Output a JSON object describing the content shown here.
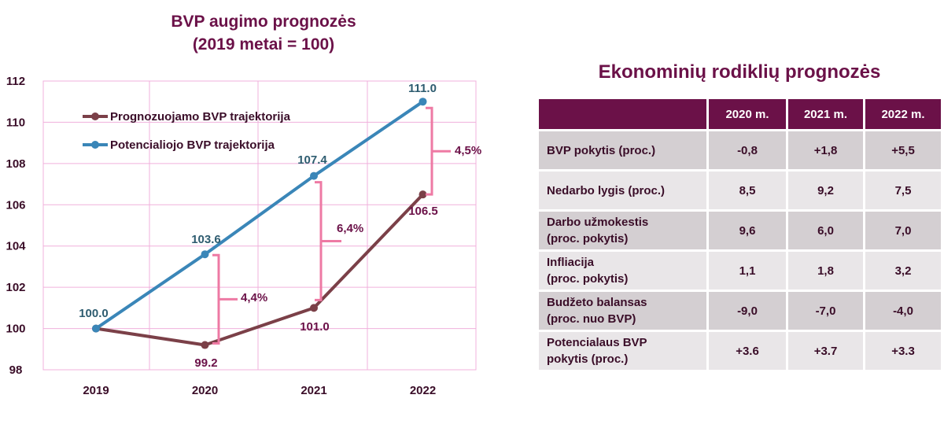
{
  "chart_data": {
    "type": "line",
    "title": "BVP augimo prognozės",
    "subtitle": "(2019 metai = 100)",
    "categories": [
      "2019",
      "2020",
      "2021",
      "2022"
    ],
    "ylim": [
      98,
      112
    ],
    "yticks": [
      "98",
      "100",
      "102",
      "104",
      "106",
      "108",
      "110",
      "112"
    ],
    "grid": true,
    "legend_position": "top-left",
    "series": [
      {
        "name": "Prognozuojamo BVP trajektorija",
        "color": "#7b4048",
        "values": [
          100.0,
          99.2,
          101.0,
          106.5
        ],
        "labels": [
          "",
          "99.2",
          "101.0",
          "106.5"
        ]
      },
      {
        "name": "Potencialiojo BVP trajektorija",
        "color": "#3a86b8",
        "values": [
          100.0,
          103.6,
          107.4,
          111.0
        ],
        "labels": [
          "100.0",
          "103.6",
          "107.4",
          "111.0"
        ]
      }
    ],
    "annotations": [
      {
        "category": "2020",
        "text": "4,4%"
      },
      {
        "category": "2021",
        "text": "6,4%"
      },
      {
        "category": "2022",
        "text": "4,5%"
      }
    ],
    "colors": {
      "title": "#6b1148",
      "grid": "#f0b0dc",
      "bracket": "#ee7aa4",
      "forecast_label": "#6b1148",
      "potential_label": "#2e5c70",
      "axis_text": "#3a0d28"
    }
  },
  "table": {
    "title": "Ekonominių rodiklių prognozės",
    "headers": [
      "",
      "2020 m.",
      "2021 m.",
      "2022 m."
    ],
    "rows": [
      {
        "label": [
          "BVP pokytis (proc.)"
        ],
        "values": [
          "-0,8",
          "+1,8",
          "+5,5"
        ]
      },
      {
        "label": [
          "Nedarbo lygis (proc.)"
        ],
        "values": [
          "8,5",
          "9,2",
          "7,5"
        ]
      },
      {
        "label": [
          "Darbo užmokestis",
          "(proc. pokytis)"
        ],
        "values": [
          "9,6",
          "6,0",
          "7,0"
        ]
      },
      {
        "label": [
          "Infliacija",
          "(proc. pokytis)"
        ],
        "values": [
          "1,1",
          "1,8",
          "3,2"
        ]
      },
      {
        "label": [
          "Budžeto balansas",
          "(proc. nuo BVP)"
        ],
        "values": [
          "-9,0",
          "-7,0",
          "-4,0"
        ]
      },
      {
        "label": [
          "Potencialaus BVP",
          "pokytis (proc.)"
        ],
        "values": [
          "+3.6",
          "+3.7",
          "+3.3"
        ]
      }
    ]
  }
}
